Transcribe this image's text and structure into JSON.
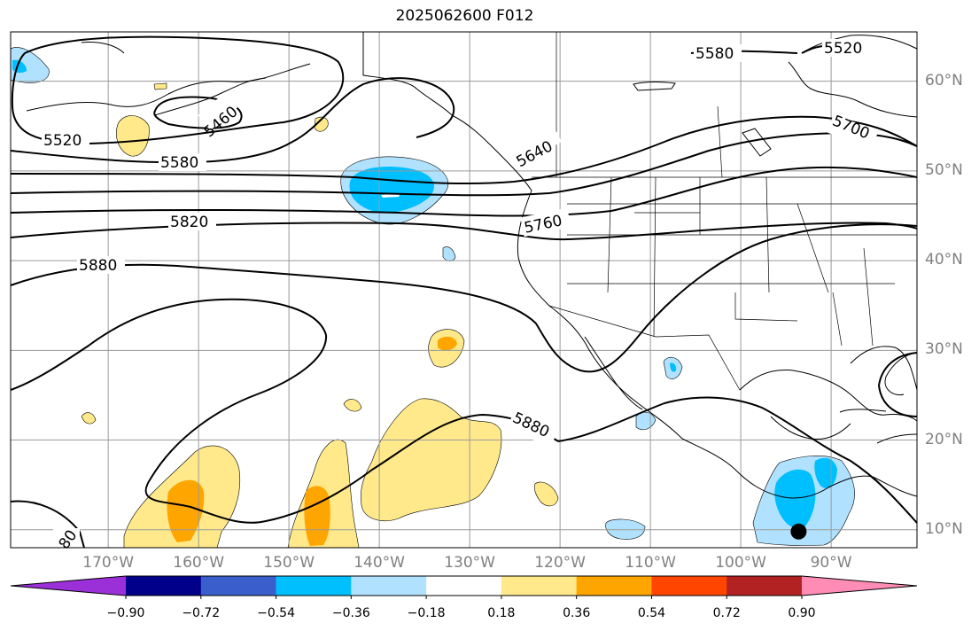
{
  "title": "2025062600 F012",
  "lon_labels": [
    {
      "text": "170°W",
      "lon": -170
    },
    {
      "text": "160°W",
      "lon": -160
    },
    {
      "text": "150°W",
      "lon": -150
    },
    {
      "text": "140°W",
      "lon": -140
    },
    {
      "text": "130°W",
      "lon": -130
    },
    {
      "text": "120°W",
      "lon": -120
    },
    {
      "text": "110°W",
      "lon": -110
    },
    {
      "text": "100°W",
      "lon": -100
    },
    {
      "text": "90°W",
      "lon": -90
    }
  ],
  "lat_labels": [
    {
      "text": "60°N",
      "lat": 60
    },
    {
      "text": "50°N",
      "lat": 50
    },
    {
      "text": "40°N",
      "lat": 40
    },
    {
      "text": "30°N",
      "lat": 30
    },
    {
      "text": "20°N",
      "lat": 20
    },
    {
      "text": "10°N",
      "lat": 10
    }
  ],
  "contour_labels": [
    "5580",
    "5520",
    "5460",
    "5520",
    "5580",
    "5640",
    "5700",
    "5760",
    "5820",
    "5880",
    "5880",
    "80"
  ],
  "colorbar": {
    "ticks": [
      "−0.90",
      "−0.72",
      "−0.54",
      "−0.36",
      "−0.18",
      "0.18",
      "0.36",
      "0.54",
      "0.72",
      "0.90"
    ],
    "colors": [
      "#9b30d9",
      "#00008b",
      "#3a5fcd",
      "#00bfff",
      "#b0e2ff",
      "#ffffff",
      "#ffe98a",
      "#ffa500",
      "#ff4500",
      "#b22222",
      "#ff8cb4"
    ]
  },
  "marker": {
    "name": "storm-center-dot",
    "lon": -93.6,
    "lat": 9.8
  }
}
